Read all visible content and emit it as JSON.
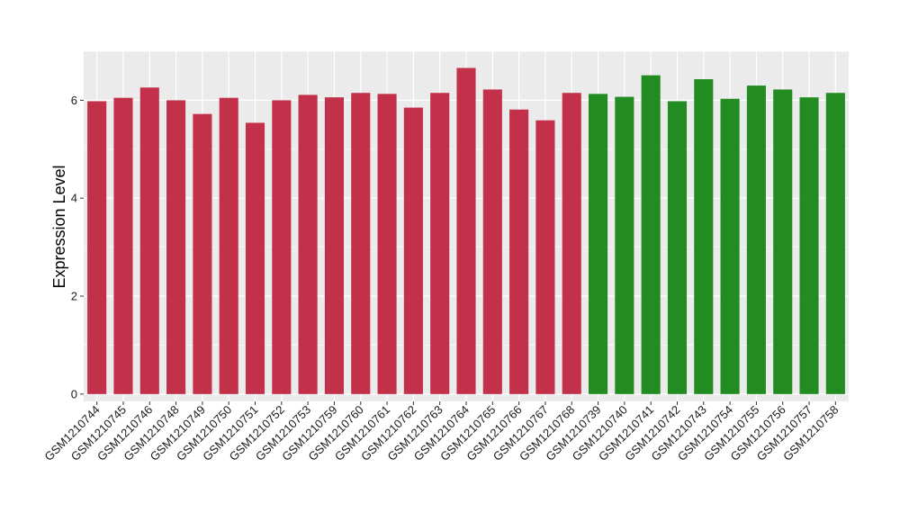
{
  "chart_data": {
    "type": "bar",
    "title": "",
    "xlabel": "",
    "ylabel": "Expression Level",
    "ylim": [
      -0.15,
      7.0
    ],
    "yticks": [
      0,
      2,
      4,
      6
    ],
    "grid": true,
    "background": "#ebebeb",
    "grid_color": "#ffffff",
    "categories": [
      "GSM1210744",
      "GSM1210745",
      "GSM1210746",
      "GSM1210748",
      "GSM1210749",
      "GSM1210750",
      "GSM1210751",
      "GSM1210752",
      "GSM1210753",
      "GSM1210759",
      "GSM1210760",
      "GSM1210761",
      "GSM1210762",
      "GSM1210763",
      "GSM1210764",
      "GSM1210765",
      "GSM1210766",
      "GSM1210767",
      "GSM1210768",
      "GSM1210739",
      "GSM1210740",
      "GSM1210741",
      "GSM1210742",
      "GSM1210743",
      "GSM1210754",
      "GSM1210755",
      "GSM1210756",
      "GSM1210757",
      "GSM1210758"
    ],
    "values": [
      5.98,
      6.05,
      6.26,
      6.0,
      5.72,
      6.05,
      5.54,
      6.0,
      6.11,
      6.06,
      6.15,
      6.13,
      5.85,
      6.15,
      6.66,
      6.22,
      5.81,
      5.59,
      6.15,
      6.13,
      6.07,
      6.51,
      5.98,
      6.43,
      6.03,
      6.3,
      6.22,
      6.06,
      6.15
    ],
    "colors": [
      "#c2304a",
      "#c2304a",
      "#c2304a",
      "#c2304a",
      "#c2304a",
      "#c2304a",
      "#c2304a",
      "#c2304a",
      "#c2304a",
      "#c2304a",
      "#c2304a",
      "#c2304a",
      "#c2304a",
      "#c2304a",
      "#c2304a",
      "#c2304a",
      "#c2304a",
      "#c2304a",
      "#c2304a",
      "#228b22",
      "#228b22",
      "#228b22",
      "#228b22",
      "#228b22",
      "#228b22",
      "#228b22",
      "#228b22",
      "#228b22",
      "#228b22"
    ]
  }
}
